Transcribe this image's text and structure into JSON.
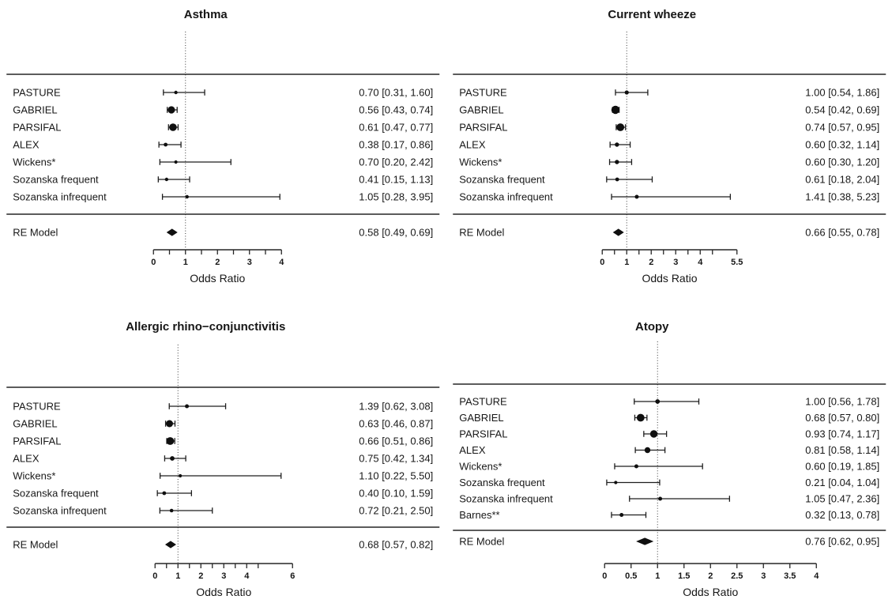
{
  "chart_data": [
    {
      "type": "forest",
      "title": "Asthma",
      "xlabel": "Odds Ratio",
      "xlim": [
        0,
        4
      ],
      "ref_line": 1,
      "grid": false,
      "ticks": [
        {
          "v": 0,
          "label": "0"
        },
        {
          "v": 0.5,
          "label": ""
        },
        {
          "v": 1,
          "label": "1"
        },
        {
          "v": 1.5,
          "label": ""
        },
        {
          "v": 2,
          "label": "2"
        },
        {
          "v": 2.5,
          "label": ""
        },
        {
          "v": 3,
          "label": "3"
        },
        {
          "v": 3.5,
          "label": ""
        },
        {
          "v": 4,
          "label": "4"
        }
      ],
      "studies": [
        {
          "label": "PASTURE",
          "or": 0.7,
          "ci_low": 0.31,
          "ci_high": 1.6,
          "text": "0.70 [0.31, 1.60]",
          "size": 2.2
        },
        {
          "label": "GABRIEL",
          "or": 0.56,
          "ci_low": 0.43,
          "ci_high": 0.74,
          "text": "0.56 [0.43, 0.74]",
          "size": 4.6
        },
        {
          "label": "PARSIFAL",
          "or": 0.61,
          "ci_low": 0.47,
          "ci_high": 0.77,
          "text": "0.61 [0.47, 0.77]",
          "size": 4.8
        },
        {
          "label": "ALEX",
          "or": 0.38,
          "ci_low": 0.17,
          "ci_high": 0.86,
          "text": "0.38 [0.17, 0.86]",
          "size": 2.4
        },
        {
          "label": "Wickens*",
          "or": 0.7,
          "ci_low": 0.2,
          "ci_high": 2.42,
          "text": "0.70 [0.20, 2.42]",
          "size": 2.1
        },
        {
          "label": "Sozanska frequent",
          "or": 0.41,
          "ci_low": 0.15,
          "ci_high": 1.13,
          "text": "0.41 [0.15, 1.13]",
          "size": 2.2
        },
        {
          "label": "Sozanska infrequent",
          "or": 1.05,
          "ci_low": 0.28,
          "ci_high": 3.95,
          "text": "1.05 [0.28, 3.95]",
          "size": 2.2
        }
      ],
      "summary": {
        "label": "RE Model",
        "or": 0.58,
        "ci_low": 0.49,
        "ci_high": 0.69,
        "text": "0.58 [0.49, 0.69]"
      }
    },
    {
      "type": "forest",
      "title": "Current wheeze",
      "xlabel": "Odds Ratio",
      "xlim": [
        0,
        5.5
      ],
      "ref_line": 1,
      "grid": false,
      "ticks": [
        {
          "v": 0,
          "label": "0"
        },
        {
          "v": 0.5,
          "label": ""
        },
        {
          "v": 1,
          "label": "1"
        },
        {
          "v": 1.5,
          "label": ""
        },
        {
          "v": 2,
          "label": "2"
        },
        {
          "v": 2.5,
          "label": ""
        },
        {
          "v": 3,
          "label": "3"
        },
        {
          "v": 3.5,
          "label": ""
        },
        {
          "v": 4,
          "label": "4"
        },
        {
          "v": 4.5,
          "label": ""
        },
        {
          "v": 5.5,
          "label": "5.5"
        }
      ],
      "studies": [
        {
          "label": "PASTURE",
          "or": 1.0,
          "ci_low": 0.54,
          "ci_high": 1.86,
          "text": "1.00 [0.54, 1.86]",
          "size": 2.6
        },
        {
          "label": "GABRIEL",
          "or": 0.54,
          "ci_low": 0.42,
          "ci_high": 0.69,
          "text": "0.54 [0.42, 0.69]",
          "size": 5.2
        },
        {
          "label": "PARSIFAL",
          "or": 0.74,
          "ci_low": 0.57,
          "ci_high": 0.95,
          "text": "0.74 [0.57, 0.95]",
          "size": 4.9
        },
        {
          "label": "ALEX",
          "or": 0.6,
          "ci_low": 0.32,
          "ci_high": 1.14,
          "text": "0.60 [0.32, 1.14]",
          "size": 2.7
        },
        {
          "label": "Wickens*",
          "or": 0.6,
          "ci_low": 0.3,
          "ci_high": 1.2,
          "text": "0.60 [0.30, 1.20]",
          "size": 2.7
        },
        {
          "label": "Sozanska frequent",
          "or": 0.61,
          "ci_low": 0.18,
          "ci_high": 2.04,
          "text": "0.61 [0.18, 2.04]",
          "size": 2.4
        },
        {
          "label": "Sozanska infrequent",
          "or": 1.41,
          "ci_low": 0.38,
          "ci_high": 5.23,
          "text": "1.41 [0.38, 5.23]",
          "size": 2.5
        }
      ],
      "summary": {
        "label": "RE Model",
        "or": 0.66,
        "ci_low": 0.55,
        "ci_high": 0.78,
        "text": "0.66 [0.55, 0.78]"
      }
    },
    {
      "type": "forest",
      "title": "Allergic rhino−conjunctivitis",
      "xlabel": "Odds Ratio",
      "xlim": [
        0,
        6
      ],
      "ref_line": 1,
      "grid": false,
      "ticks": [
        {
          "v": 0,
          "label": "0"
        },
        {
          "v": 0.5,
          "label": ""
        },
        {
          "v": 1,
          "label": "1"
        },
        {
          "v": 1.5,
          "label": ""
        },
        {
          "v": 2,
          "label": "2"
        },
        {
          "v": 2.5,
          "label": ""
        },
        {
          "v": 3,
          "label": "3"
        },
        {
          "v": 3.5,
          "label": ""
        },
        {
          "v": 4,
          "label": "4"
        },
        {
          "v": 4.5,
          "label": ""
        },
        {
          "v": 6,
          "label": "6"
        }
      ],
      "studies": [
        {
          "label": "PASTURE",
          "or": 1.39,
          "ci_low": 0.62,
          "ci_high": 3.08,
          "text": "1.39 [0.62, 3.08]",
          "size": 2.5
        },
        {
          "label": "GABRIEL",
          "or": 0.63,
          "ci_low": 0.46,
          "ci_high": 0.87,
          "text": "0.63 [0.46, 0.87]",
          "size": 4.5
        },
        {
          "label": "PARSIFAL",
          "or": 0.66,
          "ci_low": 0.51,
          "ci_high": 0.86,
          "text": "0.66 [0.51, 0.86]",
          "size": 4.9
        },
        {
          "label": "ALEX",
          "or": 0.75,
          "ci_low": 0.42,
          "ci_high": 1.34,
          "text": "0.75 [0.42, 1.34]",
          "size": 2.9
        },
        {
          "label": "Wickens*",
          "or": 1.1,
          "ci_low": 0.22,
          "ci_high": 5.5,
          "text": "1.10 [0.22, 5.50]",
          "size": 2.1
        },
        {
          "label": "Sozanska frequent",
          "or": 0.4,
          "ci_low": 0.1,
          "ci_high": 1.59,
          "text": "0.40 [0.10, 1.59]",
          "size": 2.4
        },
        {
          "label": "Sozanska infrequent",
          "or": 0.72,
          "ci_low": 0.21,
          "ci_high": 2.5,
          "text": "0.72 [0.21, 2.50]",
          "size": 2.3
        }
      ],
      "summary": {
        "label": "RE Model",
        "or": 0.68,
        "ci_low": 0.57,
        "ci_high": 0.82,
        "text": "0.68 [0.57, 0.82]"
      }
    },
    {
      "type": "forest",
      "title": "Atopy",
      "xlabel": "Odds Ratio",
      "xlim": [
        0,
        4
      ],
      "ref_line": 1,
      "grid": false,
      "ticks": [
        {
          "v": 0,
          "label": "0"
        },
        {
          "v": 0.5,
          "label": "0.5"
        },
        {
          "v": 1,
          "label": "1"
        },
        {
          "v": 1.5,
          "label": "1.5"
        },
        {
          "v": 2,
          "label": "2"
        },
        {
          "v": 2.5,
          "label": "2.5"
        },
        {
          "v": 3,
          "label": "3"
        },
        {
          "v": 3.5,
          "label": "3.5"
        },
        {
          "v": 4,
          "label": "4"
        }
      ],
      "studies": [
        {
          "label": "PASTURE",
          "or": 1.0,
          "ci_low": 0.56,
          "ci_high": 1.78,
          "text": "1.00 [0.56, 1.78]",
          "size": 2.9
        },
        {
          "label": "GABRIEL",
          "or": 0.68,
          "ci_low": 0.57,
          "ci_high": 0.8,
          "text": "0.68 [0.57, 0.80]",
          "size": 4.9
        },
        {
          "label": "PARSIFAL",
          "or": 0.93,
          "ci_low": 0.74,
          "ci_high": 1.17,
          "text": "0.93 [0.74, 1.17]",
          "size": 4.7
        },
        {
          "label": "ALEX",
          "or": 0.81,
          "ci_low": 0.58,
          "ci_high": 1.14,
          "text": "0.81 [0.58, 1.14]",
          "size": 3.7
        },
        {
          "label": "Wickens*",
          "or": 0.6,
          "ci_low": 0.19,
          "ci_high": 1.85,
          "text": "0.60 [0.19, 1.85]",
          "size": 2.5
        },
        {
          "label": "Sozanska frequent",
          "or": 0.21,
          "ci_low": 0.04,
          "ci_high": 1.04,
          "text": "0.21 [0.04, 1.04]",
          "size": 2.1
        },
        {
          "label": "Sozanska infrequent",
          "or": 1.05,
          "ci_low": 0.47,
          "ci_high": 2.36,
          "text": "1.05 [0.47, 2.36]",
          "size": 2.5
        },
        {
          "label": "Barnes**",
          "or": 0.32,
          "ci_low": 0.13,
          "ci_high": 0.78,
          "text": "0.32 [0.13, 0.78]",
          "size": 2.5
        }
      ],
      "summary": {
        "label": "RE Model",
        "or": 0.76,
        "ci_low": 0.62,
        "ci_high": 0.95,
        "text": "0.76 [0.62, 0.95]"
      }
    }
  ]
}
